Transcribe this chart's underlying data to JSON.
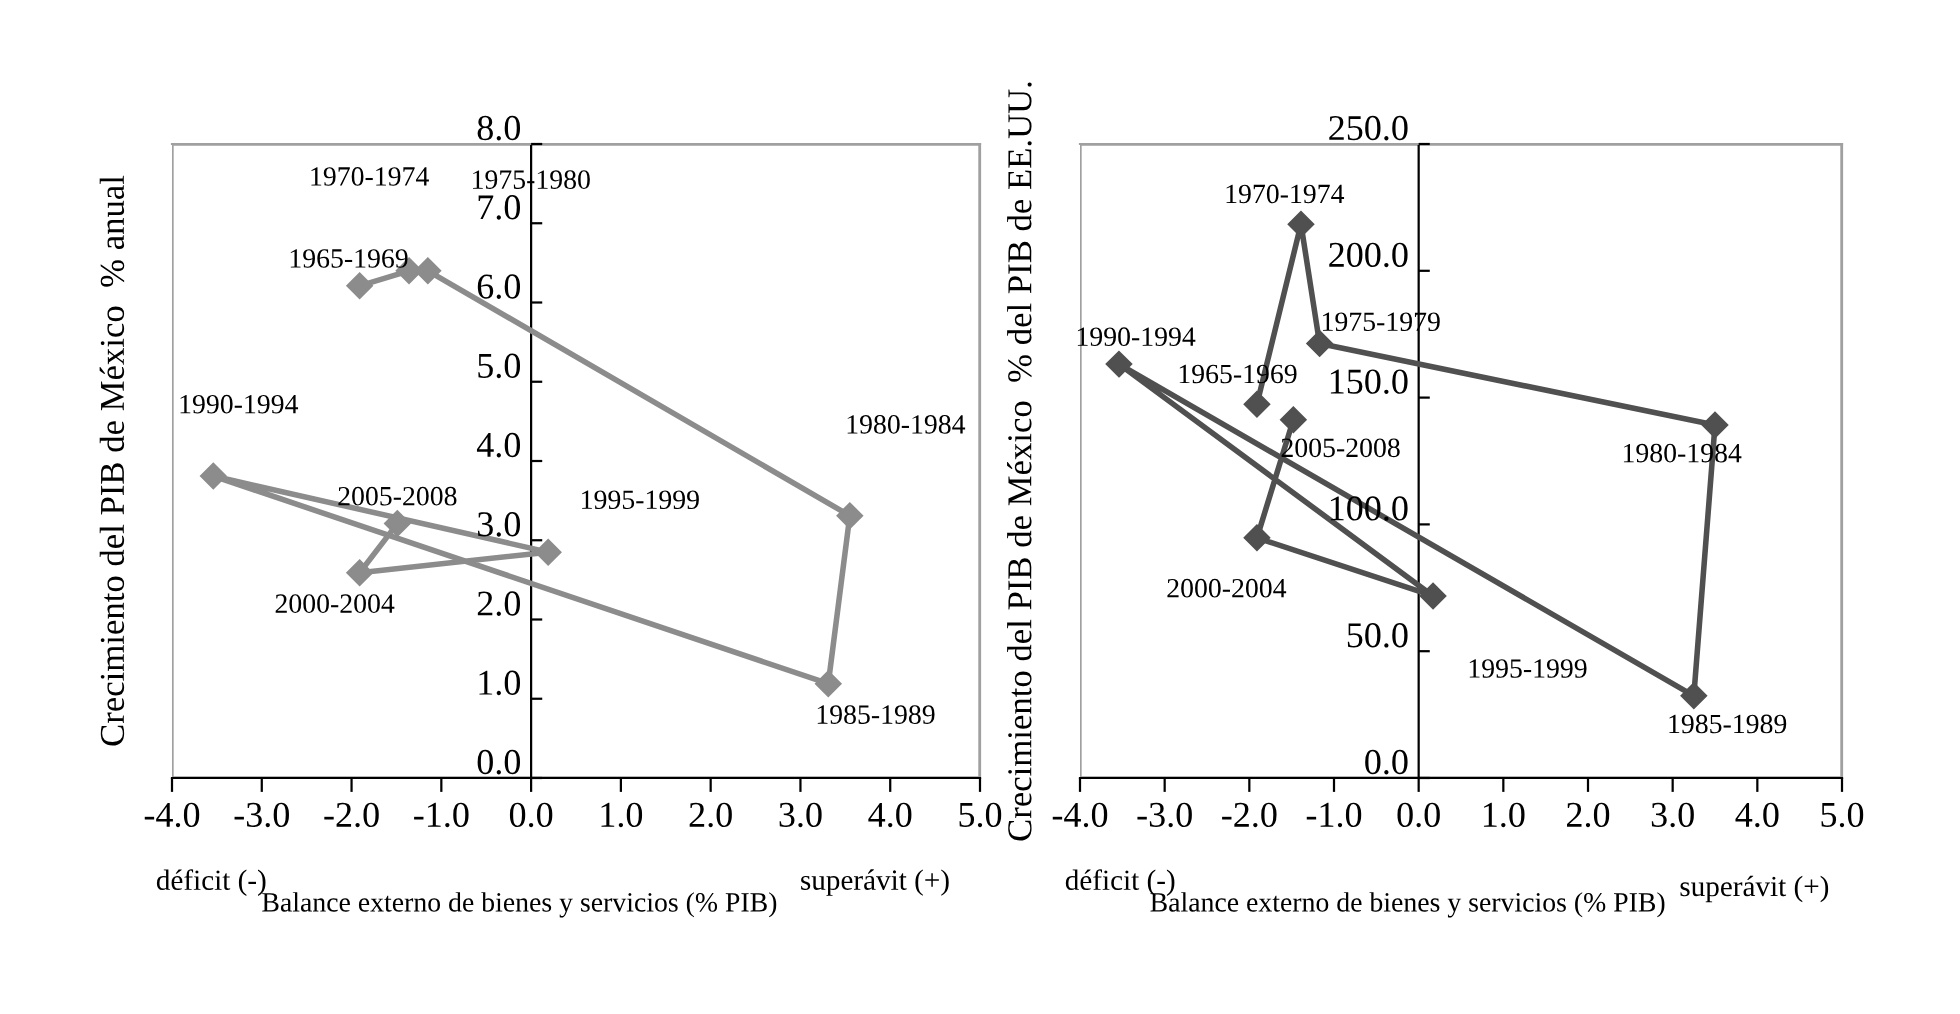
{
  "chart_data": [
    {
      "type": "line",
      "xlabel": "Balance externo de bienes y servicios (% PIB)",
      "ylabel": "Crecimiento del PIB de México  % anual",
      "series": [
        {
          "color": "#8c8c8c",
          "x": [
            -1.91,
            -1.36,
            -1.15,
            3.55,
            3.31,
            -3.54,
            0.19,
            -1.91,
            -1.49
          ],
          "values": [
            6.21,
            6.4,
            6.4,
            3.31,
            1.19,
            3.81,
            2.85,
            2.59,
            3.21
          ]
        }
      ],
      "annotations": [
        {
          "text": "1965-1969",
          "x": -1.91,
          "y": 6.21
        },
        "1970-1974",
        "1975-1980",
        {
          "text": "1980-1984",
          "x": 3.55,
          "y": 3.31
        },
        {
          "text": "1985-1989",
          "x": 3.31,
          "y": 1.19
        },
        {
          "text": "1990-1994",
          "x": -3.54,
          "y": 3.81
        },
        {
          "text": "1995-1999",
          "x": 0.19,
          "y": 2.85
        },
        {
          "text": "2000-2004",
          "x": -1.91,
          "y": 2.59
        },
        {
          "text": "2005-2008",
          "x": -1.49,
          "y": 3.21
        },
        "déficit (-)",
        "superávit (+)"
      ],
      "xlim": [
        -4.0,
        5.0
      ],
      "xticks": [
        {
          "value": -4,
          "label": "-4.0"
        },
        {
          "value": -3,
          "label": "-3.0"
        },
        {
          "value": -2,
          "label": "-2.0"
        },
        {
          "value": -1,
          "label": "-1.0"
        },
        {
          "value": 0,
          "label": "0.0"
        },
        {
          "value": 1,
          "label": "1.0"
        },
        {
          "value": 2,
          "label": "2.0"
        },
        {
          "value": 3,
          "label": "3.0"
        },
        {
          "value": 4,
          "label": "4.0"
        },
        {
          "value": 5,
          "label": "5.0"
        }
      ],
      "ylim": [
        0.0,
        8.0
      ],
      "yticks": [
        {
          "value": 0,
          "label": "0.0"
        },
        {
          "value": 1,
          "label": "1.0"
        },
        {
          "value": 2,
          "label": "2.0"
        },
        {
          "value": 3,
          "label": "3.0"
        },
        {
          "value": 4,
          "label": "4.0"
        },
        {
          "value": 5,
          "label": "5.0"
        },
        {
          "value": 6,
          "label": "6.0"
        },
        {
          "value": 7,
          "label": "7.0"
        },
        {
          "value": 8,
          "label": "8.0"
        }
      ],
      "marker": "diamond",
      "line_style": "solid"
    },
    {
      "type": "line",
      "xlabel": "Balance externo de bienes y servicios (% PIB)",
      "ylabel": "Crecimiento del PIB de México  % del PIB de EE.UU.",
      "series": [
        {
          "color": "#505050",
          "x": [
            -1.91,
            -1.39,
            -1.17,
            3.5,
            3.25,
            -3.54,
            0.17,
            -1.91,
            -1.48
          ],
          "values": [
            147.4,
            218.4,
            171.3,
            139.2,
            32.4,
            163.2,
            71.8,
            94.7,
            141.3
          ]
        }
      ],
      "annotations": [
        {
          "text": "1965-1969",
          "x": -1.91,
          "y": 147.4
        },
        {
          "text": "1970-1974",
          "x": -1.39,
          "y": 218.4
        },
        {
          "text": "1975-1979",
          "x": -1.17,
          "y": 171.3
        },
        {
          "text": "1980-1984",
          "x": 3.5,
          "y": 139.2
        },
        {
          "text": "1985-1989",
          "x": 3.25,
          "y": 32.4
        },
        {
          "text": "1990-1994",
          "x": -3.54,
          "y": 163.2
        },
        {
          "text": "1995-1999",
          "x": 0.17,
          "y": 71.8
        },
        {
          "text": "2000-2004",
          "x": -1.91,
          "y": 94.7
        },
        {
          "text": "2005-2008",
          "x": -1.48,
          "y": 141.3
        },
        "déficit (-)",
        "superávit (+)"
      ],
      "xlim": [
        -4.0,
        5.0
      ],
      "xticks": [
        {
          "value": -4,
          "label": "-4.0"
        },
        {
          "value": -3,
          "label": "-3.0"
        },
        {
          "value": -2,
          "label": "-2.0"
        },
        {
          "value": -1,
          "label": "-1.0"
        },
        {
          "value": 0,
          "label": "0.0"
        },
        {
          "value": 1,
          "label": "1.0"
        },
        {
          "value": 2,
          "label": "2.0"
        },
        {
          "value": 3,
          "label": "3.0"
        },
        {
          "value": 4,
          "label": "4.0"
        },
        {
          "value": 5,
          "label": "5.0"
        }
      ],
      "ylim": [
        0.0,
        250.0
      ],
      "yticks": [
        {
          "value": 0,
          "label": "0.0"
        },
        {
          "value": 50,
          "label": "50.0"
        },
        {
          "value": 100,
          "label": "100.0"
        },
        {
          "value": 150,
          "label": "150.0"
        },
        {
          "value": 200,
          "label": "200.0"
        },
        {
          "value": 250,
          "label": "250.0"
        }
      ],
      "marker": "diamond",
      "line_style": "solid"
    }
  ]
}
